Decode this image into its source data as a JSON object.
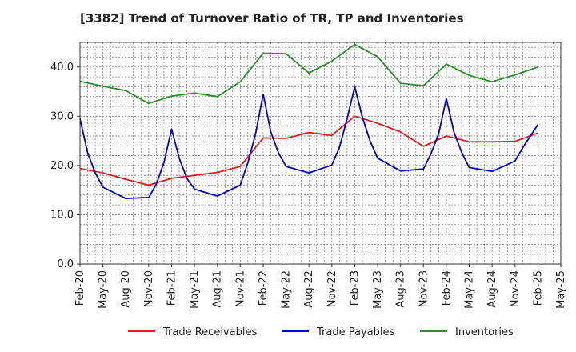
{
  "chart_data": {
    "type": "line",
    "title": "[3382]  Trend of Turnover Ratio of TR, TP and Inventories",
    "xlabel": "",
    "ylabel": "",
    "ylim": [
      0,
      45
    ],
    "yticks": [
      0.0,
      10.0,
      20.0,
      30.0,
      40.0
    ],
    "ytick_labels": [
      "0.0",
      "10.0",
      "20.0",
      "30.0",
      "40.0"
    ],
    "x_tick_labels": [
      "Feb-20",
      "May-20",
      "Aug-20",
      "Nov-20",
      "Feb-21",
      "May-21",
      "Aug-21",
      "Nov-21",
      "Feb-22",
      "May-22",
      "Aug-22",
      "Nov-22",
      "Feb-23",
      "May-23",
      "Aug-23",
      "Nov-23",
      "Feb-24",
      "May-24",
      "Aug-24",
      "Nov-24",
      "Feb-25",
      "May-25"
    ],
    "months": [
      "2020-02",
      "2020-03",
      "2020-04",
      "2020-05",
      "2020-06",
      "2020-07",
      "2020-08",
      "2020-09",
      "2020-10",
      "2020-11",
      "2020-12",
      "2021-01",
      "2021-02",
      "2021-03",
      "2021-04",
      "2021-05",
      "2021-06",
      "2021-07",
      "2021-08",
      "2021-09",
      "2021-10",
      "2021-11",
      "2021-12",
      "2022-01",
      "2022-02",
      "2022-03",
      "2022-04",
      "2022-05",
      "2022-06",
      "2022-07",
      "2022-08",
      "2022-09",
      "2022-10",
      "2022-11",
      "2022-12",
      "2023-01",
      "2023-02",
      "2023-03",
      "2023-04",
      "2023-05",
      "2023-06",
      "2023-07",
      "2023-08",
      "2023-09",
      "2023-10",
      "2023-11",
      "2023-12",
      "2024-01",
      "2024-02",
      "2024-03",
      "2024-04",
      "2024-05",
      "2024-06",
      "2024-07",
      "2024-08",
      "2024-09",
      "2024-10",
      "2024-11",
      "2024-12",
      "2025-01",
      "2025-02",
      "2025-03",
      "2025-04",
      "2025-05"
    ],
    "grid": true,
    "legend_position": "bottom",
    "series": [
      {
        "name": "Trade Receivables",
        "color": "#e41a1c",
        "points": [
          [
            "2020-02",
            19.4
          ],
          [
            "2020-05",
            18.5
          ],
          [
            "2020-08",
            17.2
          ],
          [
            "2020-11",
            16.0
          ],
          [
            "2021-02",
            17.4
          ],
          [
            "2021-05",
            18.0
          ],
          [
            "2021-08",
            18.6
          ],
          [
            "2021-11",
            19.8
          ],
          [
            "2022-02",
            25.6
          ],
          [
            "2022-05",
            25.5
          ],
          [
            "2022-08",
            26.7
          ],
          [
            "2022-11",
            26.1
          ],
          [
            "2023-02",
            30.0
          ],
          [
            "2023-05",
            28.6
          ],
          [
            "2023-08",
            26.8
          ],
          [
            "2023-11",
            23.9
          ],
          [
            "2024-02",
            26.0
          ],
          [
            "2024-05",
            24.8
          ],
          [
            "2024-08",
            24.8
          ],
          [
            "2024-11",
            24.9
          ],
          [
            "2025-02",
            26.6
          ]
        ]
      },
      {
        "name": "Trade Payables",
        "color": "#0000cc",
        "points": [
          [
            "2020-02",
            29.5
          ],
          [
            "2020-03",
            22.6
          ],
          [
            "2020-04",
            18.5
          ],
          [
            "2020-05",
            15.6
          ],
          [
            "2020-08",
            13.3
          ],
          [
            "2020-11",
            13.5
          ],
          [
            "2020-12",
            16.2
          ],
          [
            "2021-01",
            20.6
          ],
          [
            "2021-02",
            27.4
          ],
          [
            "2021-03",
            21.5
          ],
          [
            "2021-04",
            17.4
          ],
          [
            "2021-05",
            15.2
          ],
          [
            "2021-08",
            13.8
          ],
          [
            "2021-11",
            16.0
          ],
          [
            "2021-12",
            20.6
          ],
          [
            "2022-01",
            26.4
          ],
          [
            "2022-02",
            34.5
          ],
          [
            "2022-03",
            26.8
          ],
          [
            "2022-04",
            22.6
          ],
          [
            "2022-05",
            19.8
          ],
          [
            "2022-08",
            18.5
          ],
          [
            "2022-11",
            20.1
          ],
          [
            "2022-12",
            23.7
          ],
          [
            "2023-01",
            29.5
          ],
          [
            "2023-02",
            36.0
          ],
          [
            "2023-03",
            29.8
          ],
          [
            "2023-04",
            25.0
          ],
          [
            "2023-05",
            21.5
          ],
          [
            "2023-08",
            18.9
          ],
          [
            "2023-11",
            19.3
          ],
          [
            "2023-12",
            22.4
          ],
          [
            "2024-01",
            26.5
          ],
          [
            "2024-02",
            33.6
          ],
          [
            "2024-03",
            26.8
          ],
          [
            "2024-04",
            22.7
          ],
          [
            "2024-05",
            19.6
          ],
          [
            "2024-08",
            18.8
          ],
          [
            "2024-11",
            20.9
          ],
          [
            "2024-12",
            23.6
          ],
          [
            "2025-02",
            28.3
          ]
        ]
      },
      {
        "name": "Inventories",
        "color": "#2a8c2a",
        "points": [
          [
            "2020-02",
            37.1
          ],
          [
            "2020-05",
            36.1
          ],
          [
            "2020-08",
            35.2
          ],
          [
            "2020-11",
            32.6
          ],
          [
            "2021-02",
            34.1
          ],
          [
            "2021-05",
            34.7
          ],
          [
            "2021-08",
            34.0
          ],
          [
            "2021-11",
            37.0
          ],
          [
            "2022-02",
            42.8
          ],
          [
            "2022-05",
            42.7
          ],
          [
            "2022-08",
            38.8
          ],
          [
            "2022-11",
            41.2
          ],
          [
            "2023-02",
            44.6
          ],
          [
            "2023-05",
            42.1
          ],
          [
            "2023-08",
            36.7
          ],
          [
            "2023-11",
            36.2
          ],
          [
            "2024-02",
            40.6
          ],
          [
            "2024-05",
            38.3
          ],
          [
            "2024-08",
            37.0
          ],
          [
            "2024-11",
            38.4
          ],
          [
            "2025-02",
            40.0
          ]
        ]
      }
    ]
  }
}
